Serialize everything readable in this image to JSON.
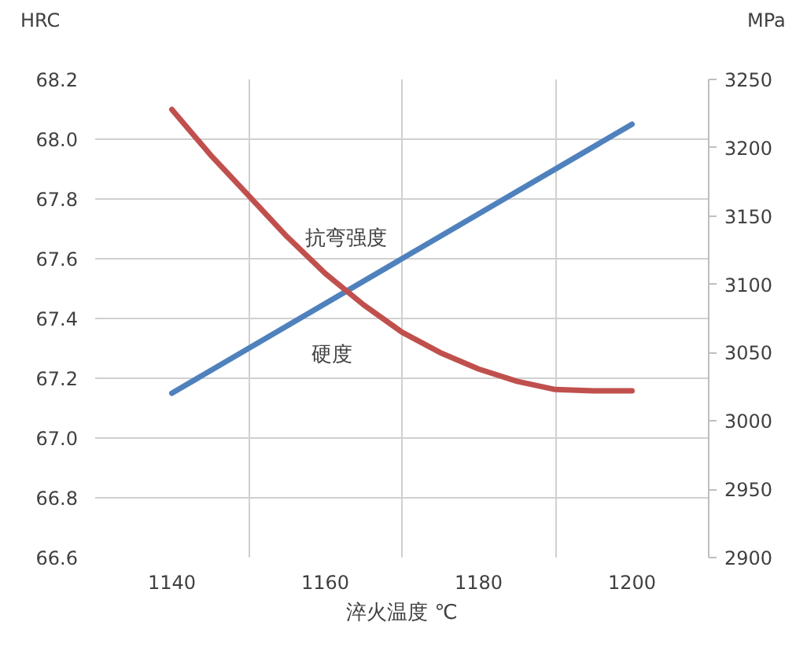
{
  "chart_data": {
    "type": "line",
    "xlabel": "淬火温度 ℃",
    "ylabel": "HRC",
    "y2label": "MPa",
    "xlim": [
      1130,
      1210
    ],
    "xticks": [
      1140,
      {
        "value": 1150,
        "label": null
      },
      1160,
      {
        "value": 1170,
        "label": null
      },
      1180,
      {
        "value": 1190,
        "label": null
      },
      1200
    ],
    "ylim": [
      66.6,
      68.2
    ],
    "yticks": [
      66.6,
      66.8,
      {
        "value": 67,
        "label": "67.0"
      },
      67.2,
      67.4,
      67.6,
      67.8,
      {
        "value": 68,
        "label": "68.0"
      },
      68.2
    ],
    "y2lim": [
      2900,
      3250
    ],
    "y2ticks": [
      2900,
      2950,
      3000,
      3050,
      3100,
      3150,
      3200,
      3250
    ],
    "grid": true,
    "marker": "none",
    "line_style": "solid",
    "series": [
      {
        "name": "硬度",
        "color": "#4f81bd",
        "x": [
          1140,
          1200
        ],
        "values": [
          67.15,
          68.05
        ]
      },
      {
        "name": "抗弯强度",
        "color": "#c0504d",
        "axis": "y2",
        "x": [
          1140,
          1145,
          1150,
          1155,
          1160,
          1165,
          1170,
          1175,
          1180,
          1185,
          1190,
          1195,
          1200
        ],
        "values": [
          3228,
          3195,
          3165,
          3135,
          3108,
          3085,
          3065,
          3050,
          3038,
          3029,
          3023,
          3022,
          3022
        ]
      }
    ]
  }
}
